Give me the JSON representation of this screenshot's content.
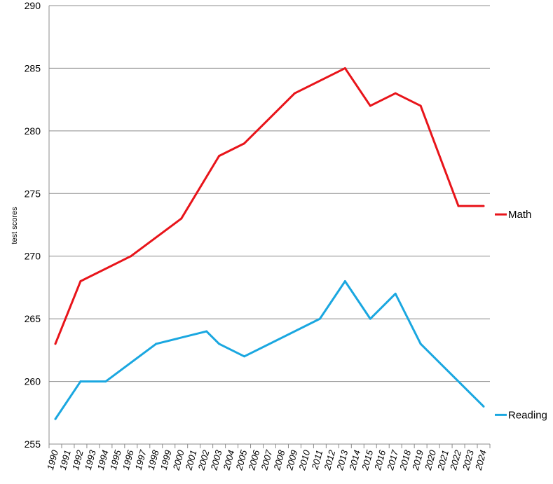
{
  "chart_data": {
    "type": "line",
    "title": "",
    "xlabel": "",
    "ylabel": "test scores",
    "ylim": [
      255,
      290
    ],
    "yticks": [
      255,
      260,
      265,
      270,
      275,
      280,
      285,
      290
    ],
    "grid": true,
    "legend_placement": "right, next to line ends",
    "categories": [
      "1990",
      "1991",
      "1992",
      "1993",
      "1994",
      "1995",
      "1996",
      "1997",
      "1998",
      "1999",
      "2000",
      "2001",
      "2002",
      "2003",
      "2004",
      "2005",
      "2006",
      "2007",
      "2008",
      "2009",
      "2010",
      "2011",
      "2012",
      "2013",
      "2014",
      "2015",
      "2016",
      "2017",
      "2018",
      "2019",
      "2020",
      "2021",
      "2022",
      "2023",
      "2024"
    ],
    "series": [
      {
        "name": "Math",
        "color": "#e8141a",
        "points": [
          {
            "x": 1990,
            "y": 263
          },
          {
            "x": 1992,
            "y": 268
          },
          {
            "x": 1996,
            "y": 270
          },
          {
            "x": 2000,
            "y": 273
          },
          {
            "x": 2003,
            "y": 278
          },
          {
            "x": 2005,
            "y": 279
          },
          {
            "x": 2009,
            "y": 283
          },
          {
            "x": 2013,
            "y": 285
          },
          {
            "x": 2015,
            "y": 282
          },
          {
            "x": 2017,
            "y": 283
          },
          {
            "x": 2019,
            "y": 282
          },
          {
            "x": 2022,
            "y": 274
          },
          {
            "x": 2024,
            "y": 274
          }
        ]
      },
      {
        "name": "Reading",
        "color": "#1aa7e0",
        "points": [
          {
            "x": 1990,
            "y": 257
          },
          {
            "x": 1992,
            "y": 260
          },
          {
            "x": 1994,
            "y": 260
          },
          {
            "x": 1998,
            "y": 263
          },
          {
            "x": 2002,
            "y": 264
          },
          {
            "x": 2003,
            "y": 263
          },
          {
            "x": 2005,
            "y": 262
          },
          {
            "x": 2011,
            "y": 265
          },
          {
            "x": 2013,
            "y": 268
          },
          {
            "x": 2015,
            "y": 265
          },
          {
            "x": 2017,
            "y": 267
          },
          {
            "x": 2019,
            "y": 263
          },
          {
            "x": 2024,
            "y": 258
          }
        ]
      }
    ]
  }
}
